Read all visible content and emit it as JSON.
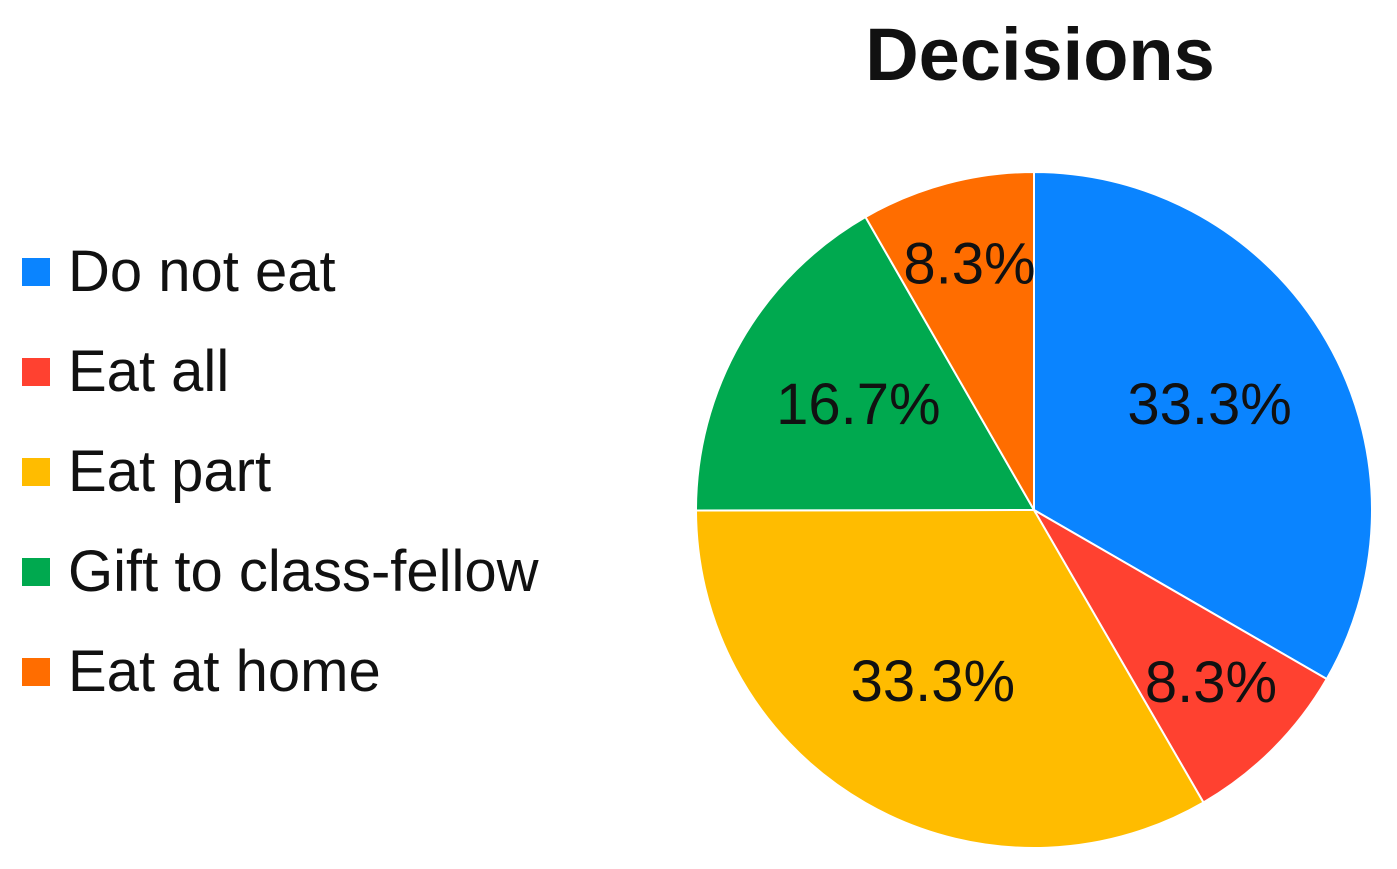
{
  "chart_data": {
    "type": "pie",
    "title": "Decisions",
    "legend_position": "left",
    "categories": [
      "Do not eat",
      "Eat all",
      "Eat part",
      "Gift to class-fellow",
      "Eat at home"
    ],
    "values": [
      33.3,
      8.3,
      33.3,
      16.7,
      8.3
    ],
    "labels": [
      "33.3%",
      "8.3%",
      "33.3%",
      "16.7%",
      "8.3%"
    ],
    "colors": [
      "#0a84ff",
      "#ff4130",
      "#ffbc00",
      "#00a94f",
      "#ff6d00"
    ]
  }
}
